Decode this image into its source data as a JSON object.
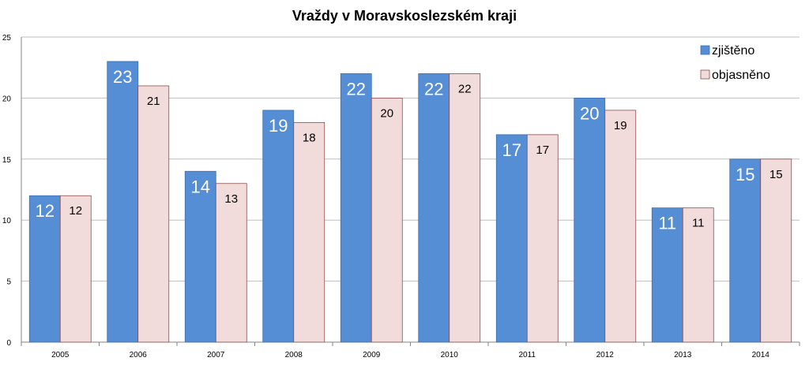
{
  "chart_data": {
    "type": "bar",
    "title": "Vraždy v Moravskoslezském kraji",
    "xlabel": "",
    "ylabel": "",
    "categories": [
      "2005",
      "2006",
      "2007",
      "2008",
      "2009",
      "2010",
      "2011",
      "2012",
      "2013",
      "2014"
    ],
    "series": [
      {
        "name": "zjištěno",
        "values": [
          12,
          23,
          14,
          19,
          22,
          22,
          17,
          20,
          11,
          15
        ],
        "color": "#558ed5"
      },
      {
        "name": "objasněno",
        "values": [
          12,
          21,
          13,
          18,
          20,
          22,
          17,
          19,
          11,
          15
        ],
        "color": "#f2dcdb"
      }
    ],
    "ylim": [
      0,
      25
    ],
    "yticks": [
      "0",
      "5",
      "10",
      "15",
      "20",
      "25"
    ],
    "grid": true,
    "legend_position": "top-right",
    "data_labels": true
  }
}
